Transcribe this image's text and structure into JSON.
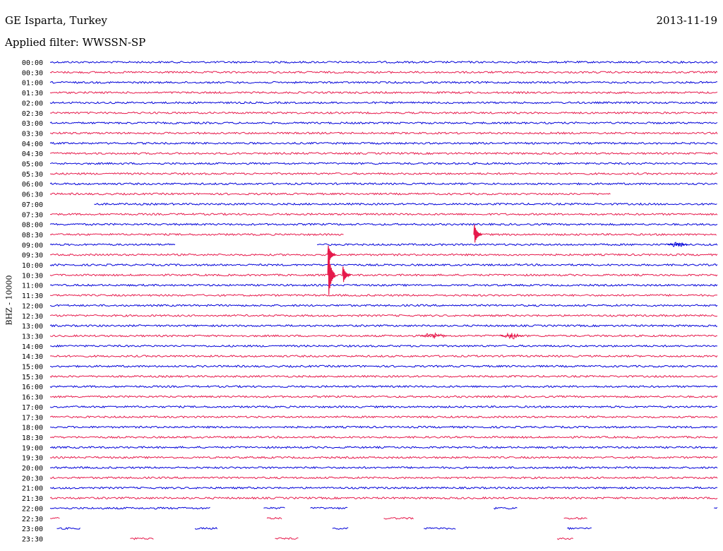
{
  "header": {
    "station": "GE Isparta, Turkey",
    "date": "2013-11-19",
    "filter": "Applied filter: WWSSN-SP"
  },
  "chart_data": {
    "type": "line",
    "title": "GE Isparta, Turkey",
    "ylabel": "BHZ - 10000",
    "colors": [
      "#0000d8",
      "#e6194b"
    ],
    "row_labels": [
      "00:00",
      "00:30",
      "01:00",
      "01:30",
      "02:00",
      "02:30",
      "03:00",
      "03:30",
      "04:00",
      "04:30",
      "05:00",
      "05:30",
      "06:00",
      "06:30",
      "07:00",
      "07:30",
      "08:00",
      "08:30",
      "09:00",
      "09:30",
      "10:00",
      "10:30",
      "11:00",
      "11:30",
      "12:00",
      "12:30",
      "13:00",
      "13:30",
      "14:00",
      "14:30",
      "15:00",
      "15:30",
      "16:00",
      "16:30",
      "17:00",
      "17:30",
      "18:00",
      "18:30",
      "19:00",
      "19:30",
      "20:00",
      "20:30",
      "21:00",
      "21:30",
      "22:00",
      "22:30",
      "23:00",
      "23:30"
    ],
    "segments": [
      [
        [
          0,
          1
        ]
      ],
      [
        [
          0,
          1
        ]
      ],
      [
        [
          0,
          1
        ]
      ],
      [
        [
          0,
          1
        ]
      ],
      [
        [
          0,
          1
        ]
      ],
      [
        [
          0,
          1
        ]
      ],
      [
        [
          0,
          1
        ]
      ],
      [
        [
          0,
          1
        ]
      ],
      [
        [
          0,
          1
        ]
      ],
      [
        [
          0,
          1
        ]
      ],
      [
        [
          0,
          1
        ]
      ],
      [
        [
          0,
          1
        ]
      ],
      [
        [
          0,
          1
        ]
      ],
      [
        [
          0,
          0.84
        ]
      ],
      [
        [
          0.066,
          1
        ]
      ],
      [
        [
          0,
          1
        ]
      ],
      [
        [
          0,
          1
        ]
      ],
      [
        [
          0,
          0.44
        ],
        [
          0.635,
          1
        ]
      ],
      [
        [
          0,
          0.188
        ],
        [
          0.4,
          1
        ]
      ],
      [
        [
          0,
          1
        ]
      ],
      [
        [
          0,
          1
        ]
      ],
      [
        [
          0,
          1
        ]
      ],
      [
        [
          0,
          1
        ]
      ],
      [
        [
          0,
          1
        ]
      ],
      [
        [
          0,
          1
        ]
      ],
      [
        [
          0,
          1
        ]
      ],
      [
        [
          0,
          1
        ]
      ],
      [
        [
          0,
          1
        ]
      ],
      [
        [
          0,
          1
        ]
      ],
      [
        [
          0,
          1
        ]
      ],
      [
        [
          0,
          1
        ]
      ],
      [
        [
          0,
          1
        ]
      ],
      [
        [
          0,
          1
        ]
      ],
      [
        [
          0,
          1
        ]
      ],
      [
        [
          0,
          1
        ]
      ],
      [
        [
          0,
          1
        ]
      ],
      [
        [
          0,
          1
        ]
      ],
      [
        [
          0,
          1
        ]
      ],
      [
        [
          0,
          1
        ]
      ],
      [
        [
          0,
          1
        ]
      ],
      [
        [
          0,
          1
        ]
      ],
      [
        [
          0,
          1
        ]
      ],
      [
        [
          0,
          1
        ]
      ],
      [
        [
          0,
          1
        ]
      ],
      [
        [
          0,
          0.24
        ],
        [
          0.32,
          0.352
        ],
        [
          0.39,
          0.447
        ],
        [
          0.665,
          0.7
        ],
        [
          0.995,
          1
        ]
      ],
      [
        [
          0,
          0.015
        ],
        [
          0.325,
          0.348
        ],
        [
          0.5,
          0.545
        ],
        [
          0.77,
          0.805
        ]
      ],
      [
        [
          0.01,
          0.045
        ],
        [
          0.217,
          0.251
        ],
        [
          0.423,
          0.448
        ],
        [
          0.56,
          0.608
        ],
        [
          0.775,
          0.812
        ]
      ],
      [
        [
          0.12,
          0.155
        ],
        [
          0.337,
          0.372
        ],
        [
          0.76,
          0.785
        ]
      ]
    ],
    "events": [
      {
        "row": 19,
        "x": 0.417,
        "amp": 13
      },
      {
        "row": 21,
        "x": 0.417,
        "amp": 34
      },
      {
        "row": 21,
        "x": 0.439,
        "amp": 12
      },
      {
        "row": 17,
        "x": 0.636,
        "amp": 14
      }
    ],
    "bursts": [
      {
        "row": 18,
        "x": 0.925,
        "width": 0.03
      },
      {
        "row": 27,
        "x": 0.555,
        "width": 0.04
      },
      {
        "row": 27,
        "x": 0.675,
        "width": 0.035
      }
    ]
  }
}
